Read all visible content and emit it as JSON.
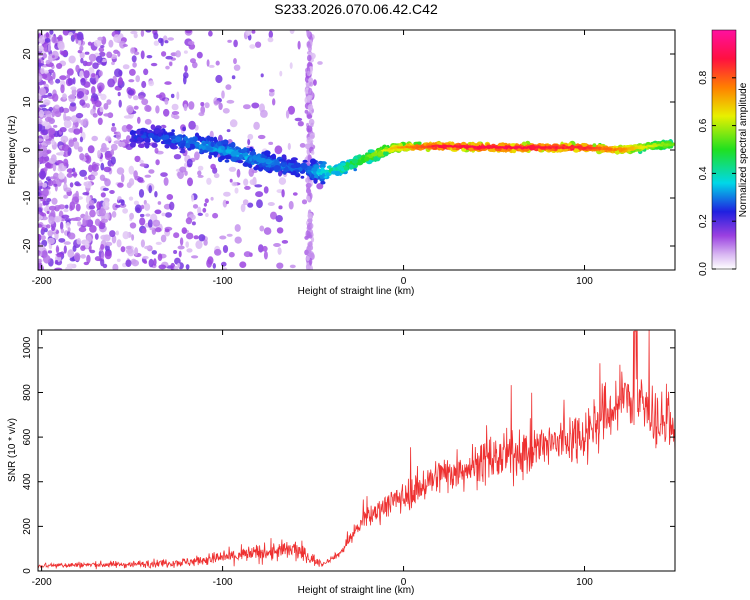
{
  "title": "S233.2026.070.06.42.C42",
  "chart_data": [
    {
      "type": "heatmap",
      "name": "spectrogram",
      "xlabel": "Height of straight line (km)",
      "ylabel": "Frequency (Hz)",
      "xlim": [
        -202,
        150
      ],
      "ylim": [
        -25,
        25
      ],
      "xticks": [
        -200,
        -100,
        0,
        100
      ],
      "yticks": [
        -20,
        -10,
        0,
        10,
        20
      ],
      "colorbar": {
        "label": "Normalized spectral amplitude",
        "range": [
          0,
          1
        ],
        "ticks": [
          "0.0",
          "0.2",
          "0.4",
          "0.6",
          "0.8"
        ],
        "tick_values": [
          0.0,
          0.2,
          0.4,
          0.6,
          0.8
        ],
        "colors": [
          "#ffffff",
          "#d9b8f2",
          "#7a1fd6",
          "#2020e0",
          "#00e0e0",
          "#20e020",
          "#f0f000",
          "#ff8000",
          "#ff1040",
          "#ff10a0"
        ]
      },
      "ridge": [
        {
          "x": -150,
          "f": 3.0,
          "a": 0.25
        },
        {
          "x": -130,
          "f": 2.5,
          "a": 0.28
        },
        {
          "x": -110,
          "f": 1.0,
          "a": 0.32
        },
        {
          "x": -90,
          "f": -1.0,
          "a": 0.33
        },
        {
          "x": -70,
          "f": -3.0,
          "a": 0.3
        },
        {
          "x": -55,
          "f": -4.0,
          "a": 0.28
        },
        {
          "x": -45,
          "f": -4.5,
          "a": 0.38
        },
        {
          "x": -35,
          "f": -4.0,
          "a": 0.45
        },
        {
          "x": -20,
          "f": -1.5,
          "a": 0.55
        },
        {
          "x": -5,
          "f": 0.5,
          "a": 0.7
        },
        {
          "x": 20,
          "f": 0.8,
          "a": 0.88
        },
        {
          "x": 60,
          "f": 0.5,
          "a": 0.9
        },
        {
          "x": 100,
          "f": 0.5,
          "a": 0.85
        },
        {
          "x": 120,
          "f": 0.0,
          "a": 0.75
        },
        {
          "x": 140,
          "f": 1.0,
          "a": 0.6
        },
        {
          "x": 150,
          "f": 1.2,
          "a": 0.55
        }
      ]
    },
    {
      "type": "line",
      "name": "snr",
      "xlabel": "Height of straight line (km)",
      "ylabel": "SNR (10 * v/v)",
      "xlim": [
        -202,
        150
      ],
      "ylim": [
        0,
        1080
      ],
      "xticks": [
        -200,
        -100,
        0,
        100
      ],
      "yticks": [
        0,
        200,
        400,
        600,
        800,
        1000
      ],
      "color": "#ee3030",
      "trend": [
        {
          "x": -202,
          "y": 25
        },
        {
          "x": -150,
          "y": 30
        },
        {
          "x": -120,
          "y": 40
        },
        {
          "x": -100,
          "y": 60
        },
        {
          "x": -80,
          "y": 80
        },
        {
          "x": -60,
          "y": 95
        },
        {
          "x": -45,
          "y": 30
        },
        {
          "x": -35,
          "y": 80
        },
        {
          "x": -25,
          "y": 200
        },
        {
          "x": -10,
          "y": 300
        },
        {
          "x": 0,
          "y": 330
        },
        {
          "x": 20,
          "y": 430
        },
        {
          "x": 50,
          "y": 500
        },
        {
          "x": 80,
          "y": 560
        },
        {
          "x": 100,
          "y": 620
        },
        {
          "x": 115,
          "y": 720
        },
        {
          "x": 125,
          "y": 790
        },
        {
          "x": 135,
          "y": 720
        },
        {
          "x": 150,
          "y": 600
        }
      ],
      "peak": {
        "x": 128,
        "y": 1075
      }
    }
  ]
}
